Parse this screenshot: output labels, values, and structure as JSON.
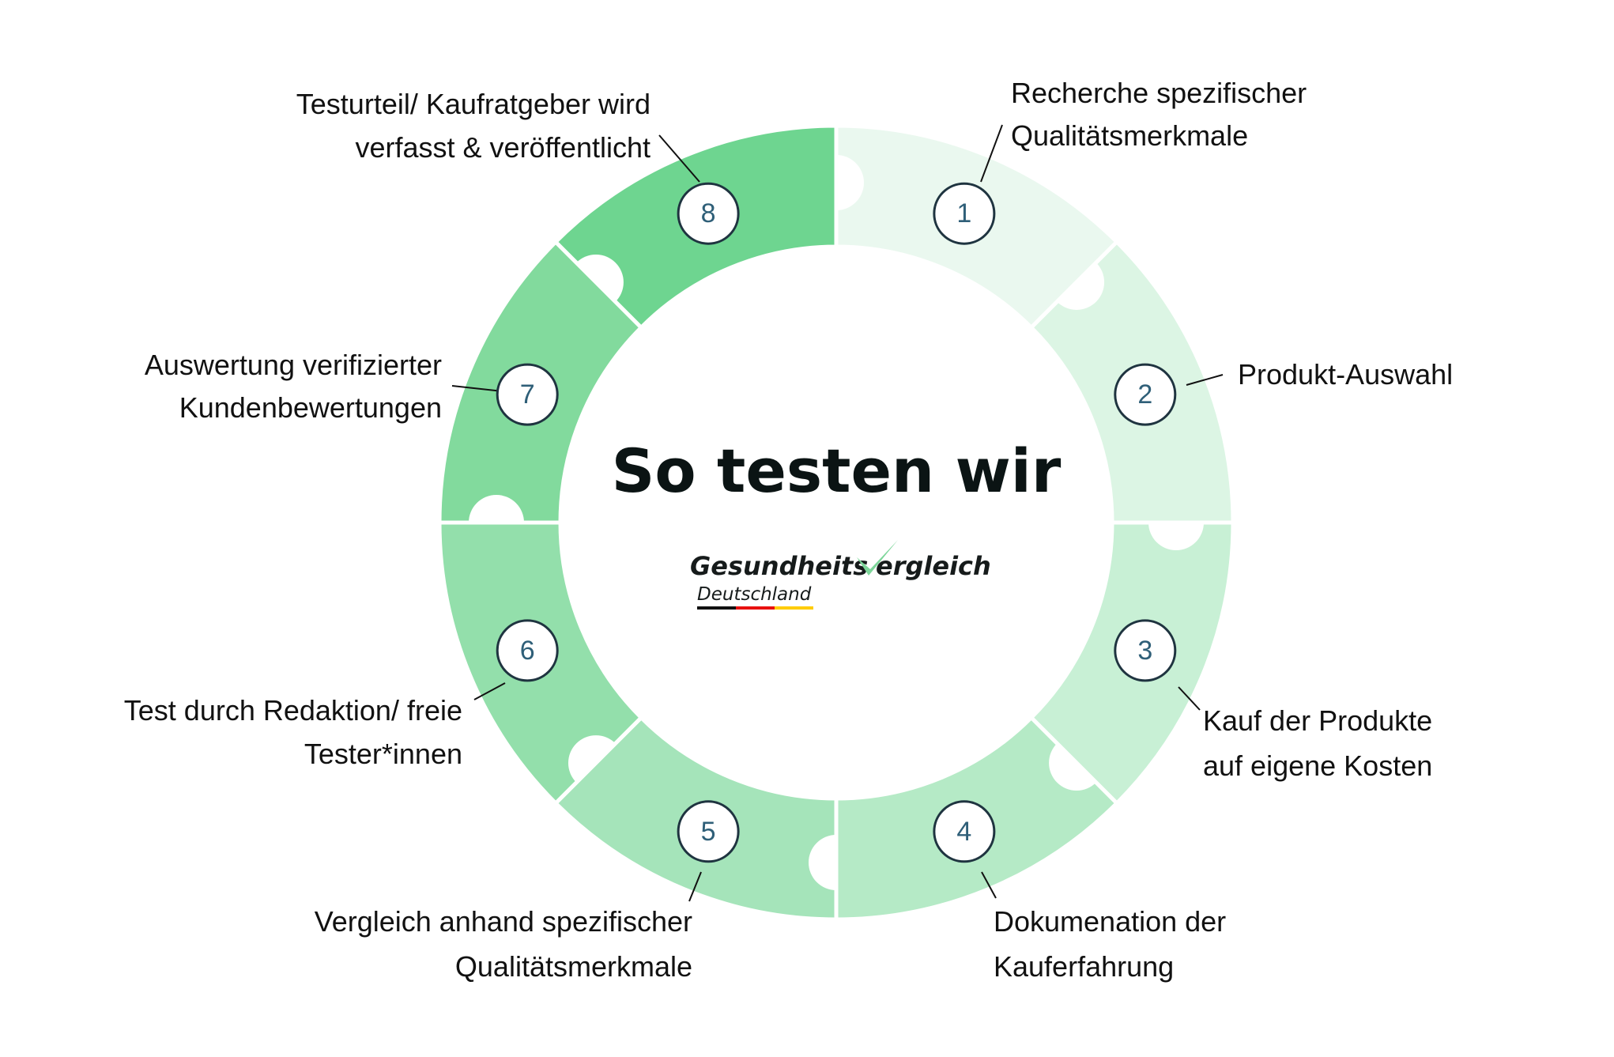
{
  "title": "So testen wir",
  "logo": {
    "part1": "Gesundheits",
    "part2": "ergleich",
    "sub": "Deutschland",
    "check_color": "#7dd69a",
    "flag_colors": [
      "#111111",
      "#e8100f",
      "#ffcc00"
    ]
  },
  "steps": [
    {
      "number": "1",
      "lines": [
        "Recherche spezifischer",
        "Qualitätsmerkmale"
      ],
      "color": "#eaf8ef"
    },
    {
      "number": "2",
      "lines": [
        "Produkt-Auswahl"
      ],
      "color": "#dcf5e4"
    },
    {
      "number": "3",
      "lines": [
        "Kauf der Produkte",
        "auf eigene Kosten"
      ],
      "color": "#c8f0d5"
    },
    {
      "number": "4",
      "lines": [
        "Dokumenation der",
        "Kauferfahrung"
      ],
      "color": "#b5eac6"
    },
    {
      "number": "5",
      "lines": [
        "Vergleich anhand spezifischer",
        "Qualitätsmerkmale"
      ],
      "color": "#a5e4ba"
    },
    {
      "number": "6",
      "lines": [
        "Test durch Redaktion/ freie",
        "Tester*innen"
      ],
      "color": "#93dfab"
    },
    {
      "number": "7",
      "lines": [
        "Auswertung verifizierter",
        "Kundenbewertungen"
      ],
      "color": "#82da9d"
    },
    {
      "number": "8",
      "lines": [
        "Testurteil/ Kaufratgeber wird",
        "verfasst & veröffentlicht"
      ],
      "color": "#6ed590"
    }
  ]
}
